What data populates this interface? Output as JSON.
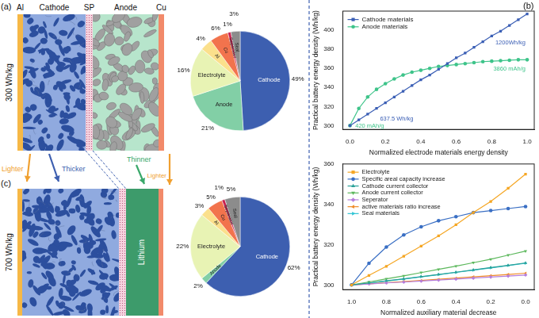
{
  "panel_labels": {
    "a": "(a)",
    "b": "(b)",
    "c": "(c)"
  },
  "diagram_a": {
    "energy_density": "300 Wh/kg",
    "layers": [
      "Al",
      "Cathode",
      "SP",
      "Anode",
      "Cu"
    ]
  },
  "diagram_c": {
    "energy_density": "700 Wh/kg",
    "anode": "Lithium"
  },
  "transition_labels": [
    "Lighter",
    "Thicker",
    "Thinner",
    "Lighter"
  ],
  "chart_data": [
    {
      "type": "pie",
      "categories": [
        "Cathode",
        "Anode",
        "Electrolyte",
        "Al",
        "Cu",
        "Separator",
        "Seal"
      ],
      "values": [
        49,
        21,
        16,
        4,
        6,
        1,
        3
      ],
      "value_labels": [
        "49%",
        "21%",
        "16%",
        "4%",
        "6%",
        "1%",
        "3%"
      ],
      "colors": [
        "#3d5fb0",
        "#82cfa6",
        "#e8f3b4",
        "#fbe08c",
        "#f2734d",
        "#c8204f",
        "#8c8c8c"
      ],
      "data_labels": true
    },
    {
      "type": "pie",
      "categories": [
        "Cathode",
        "Anode",
        "Electrolyte",
        "Al",
        "Cu",
        "Separator",
        "Seal"
      ],
      "values": [
        62,
        2,
        22,
        3,
        5,
        1,
        5
      ],
      "value_labels": [
        "62%",
        "2%",
        "22%",
        "3%",
        "5%",
        "1%",
        "5%"
      ],
      "colors": [
        "#3d5fb0",
        "#82cfa6",
        "#e8f3b4",
        "#fbe08c",
        "#f2734d",
        "#c8204f",
        "#8c8c8c"
      ],
      "data_labels": true
    },
    {
      "type": "line",
      "xlabel": "Normalized electrode materials energy density",
      "ylabel": "Practical battery energy density (Wh/kg)",
      "x": [
        0,
        0.05,
        0.1,
        0.15,
        0.2,
        0.25,
        0.3,
        0.35,
        0.4,
        0.45,
        0.5,
        0.55,
        0.6,
        0.65,
        0.7,
        0.75,
        0.8,
        0.85,
        0.9,
        0.95,
        1
      ],
      "series": [
        {
          "name": "Cathode materials",
          "color": "#3b5fb5",
          "marker": "square",
          "line_style": "solid",
          "values": [
            300,
            306,
            312,
            318,
            324,
            330,
            336,
            342,
            348,
            353,
            359,
            365,
            371,
            376,
            382,
            388,
            394,
            399,
            405,
            411,
            417
          ]
        },
        {
          "name": "Anode materials",
          "color": "#3ec48a",
          "marker": "circle",
          "line_style": "solid",
          "values": [
            300,
            318,
            330,
            338,
            344,
            349,
            353,
            356,
            358,
            360,
            362,
            363,
            364,
            365,
            366,
            367,
            367.5,
            368,
            368.5,
            369,
            369
          ]
        }
      ],
      "xlim": [
        -0.04,
        1.04
      ],
      "ylim": [
        296,
        420
      ],
      "xticks": [
        {
          "value": 0,
          "label": "0.0"
        },
        0.2,
        0.4,
        0.6,
        0.8,
        {
          "value": 1,
          "label": "1.0"
        }
      ],
      "yticks": [
        300,
        320,
        340,
        360,
        380,
        400
      ],
      "annotations": [
        "637.5 Wh/kg",
        "420 mAh/g",
        "1200Wh/kg",
        "3860 mAh/g"
      ],
      "legend": "upper left",
      "grid": false
    },
    {
      "type": "line",
      "xlabel": "Normalized auxiliary material decrease",
      "ylabel": "Practical battery energy density (Wh/kg)",
      "x": [
        1,
        0.9,
        0.8,
        0.7,
        0.6,
        0.5,
        0.4,
        0.3,
        0.2,
        0.1,
        0
      ],
      "series": [
        {
          "name": "Electrolyte",
          "color": "#f5a623",
          "marker": "square",
          "line_style": "solid",
          "values": [
            300.3,
            305,
            309.5,
            314.5,
            319.5,
            324.5,
            330,
            336,
            341.5,
            348,
            355
          ]
        },
        {
          "name": "Specific areal capacity increase",
          "color": "#3a6fc4",
          "marker": "circle",
          "line_style": "solid",
          "values": [
            300.3,
            311,
            319,
            325,
            329,
            332,
            334,
            336,
            337,
            338,
            339
          ]
        },
        {
          "name": "Cathode current collector",
          "color": "#2aa198",
          "marker": "triangle-up",
          "line_style": "solid",
          "values": [
            300.3,
            301.3,
            302.3,
            303.3,
            304.4,
            305.5,
            306.6,
            307.7,
            308.9,
            310,
            311.2
          ]
        },
        {
          "name": "Anode current collector",
          "color": "#5cb85c",
          "marker": "triangle-down",
          "line_style": "solid",
          "values": [
            300.3,
            301.8,
            303.3,
            304.8,
            306.4,
            308,
            309.6,
            311.3,
            313,
            315,
            317
          ]
        },
        {
          "name": "Seperator",
          "color": "#b57edc",
          "marker": "diamond",
          "line_style": "solid",
          "values": [
            300.3,
            300.8,
            301.3,
            301.7,
            302.2,
            302.7,
            303.2,
            303.7,
            304.2,
            304.7,
            305.2
          ]
        },
        {
          "name": "active materials ratio increase",
          "color": "#f08c28",
          "marker": "triangle-left",
          "line_style": "solid",
          "values": [
            300.3,
            300.9,
            301.4,
            302,
            302.5,
            303.1,
            303.7,
            304.3,
            304.9,
            305.5,
            306.1
          ]
        },
        {
          "name": "Seal materials",
          "color": "#2fc4d4",
          "marker": "triangle-right",
          "line_style": "solid",
          "values": [
            300.3,
            301.2,
            302.2,
            303.2,
            304.3,
            305.4,
            306.5,
            307.6,
            308.7,
            309.9,
            311
          ]
        }
      ],
      "xlim": [
        1.05,
        -0.05
      ],
      "ylim": [
        298,
        360
      ],
      "xticks": [
        {
          "value": 1,
          "label": "1.0"
        },
        0.8,
        0.6,
        0.4,
        0.2,
        {
          "value": 0,
          "label": "0.0"
        }
      ],
      "yticks": [
        300,
        320,
        340,
        360
      ],
      "legend": "upper left",
      "grid": false
    }
  ]
}
